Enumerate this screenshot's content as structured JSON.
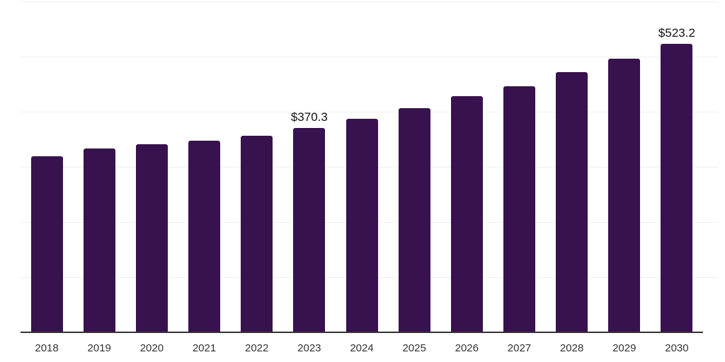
{
  "chart_data": {
    "type": "bar",
    "title": "",
    "xlabel": "",
    "ylabel": "",
    "categories": [
      "2018",
      "2019",
      "2020",
      "2021",
      "2022",
      "2023",
      "2024",
      "2025",
      "2026",
      "2027",
      "2028",
      "2029",
      "2030"
    ],
    "values": [
      319.2,
      333.5,
      341.4,
      347.3,
      356.4,
      370.3,
      386.8,
      406.7,
      428.1,
      446.4,
      471.3,
      495.6,
      523.2
    ],
    "data_labels": {
      "2023": "$370.3",
      "2030": "$523.2"
    },
    "ylim": [
      0,
      600
    ],
    "grid_interval": 100,
    "grid": "horizontal",
    "y_axis_labels_visible": false,
    "legend_position": "none",
    "colors": {
      "bar": "#38124E",
      "gridline": "#F0F0F3",
      "axis_line": "#333333",
      "tick_label": "#333333",
      "data_label": "#111111",
      "background": "#FFFFFF"
    }
  }
}
